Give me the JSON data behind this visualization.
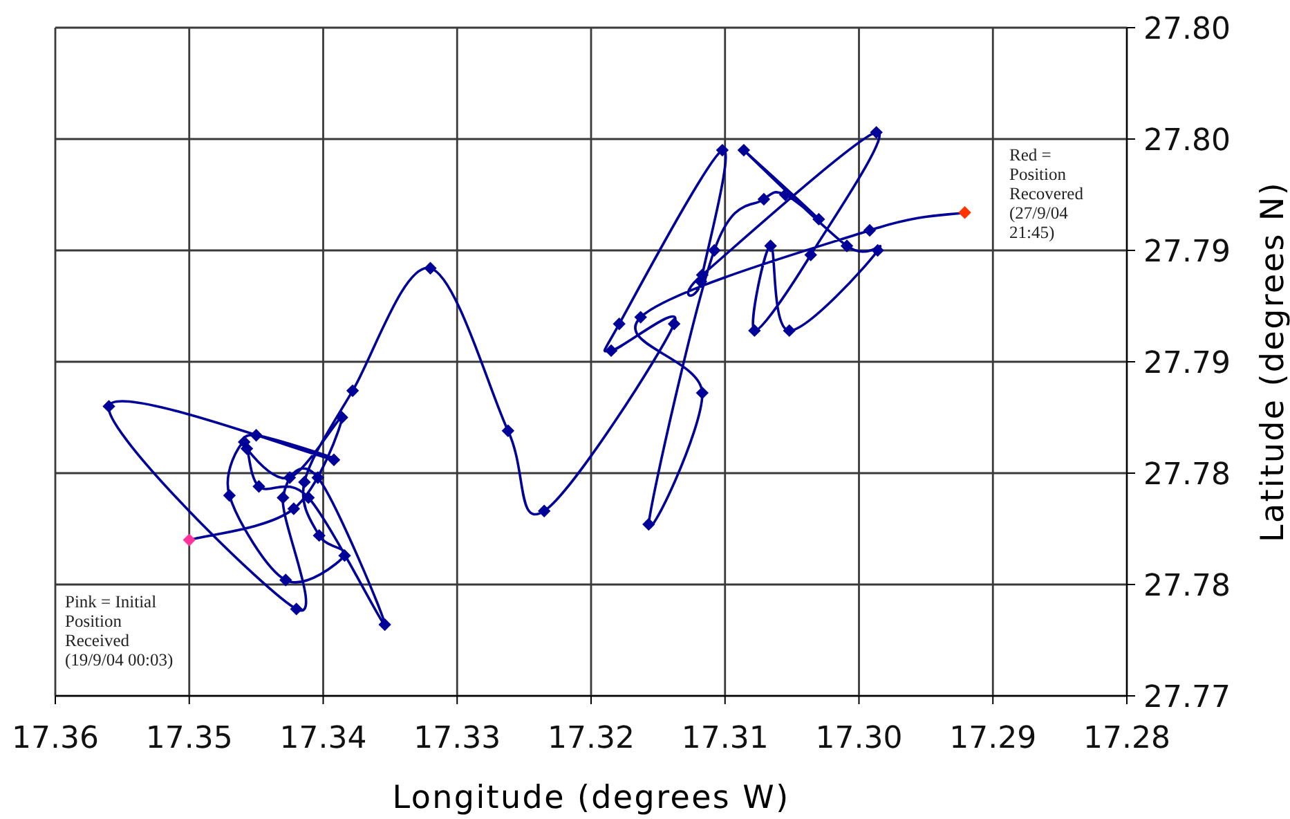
{
  "chart_data": {
    "type": "line",
    "xlabel": "Longitude (degrees W)",
    "ylabel": "Latitude (degrees N)",
    "annotations": [
      "Red = Position Recovered (27/9/04 21:45)",
      "Pink = Initial Position Received (19/9/04 00:03)"
    ],
    "xlim": [
      17.36,
      17.28
    ],
    "xticks": [
      17.36,
      17.35,
      17.34,
      17.33,
      17.32,
      17.31,
      {
        "value": 17.3,
        "label": "17.30"
      },
      17.29,
      17.28
    ],
    "ylim": [
      27.77,
      27.8
    ],
    "yticks": [
      27.77,
      {
        "value": 27.775,
        "label": "27.78"
      },
      27.78,
      {
        "value": 27.785,
        "label": "27.79"
      },
      27.79,
      {
        "value": 27.795,
        "label": "27.80"
      },
      {
        "value": 27.8,
        "label": "27.80"
      }
    ],
    "grid": true,
    "marker": "diamond",
    "color": "#000099",
    "x": [
      17.35,
      17.3422,
      17.3386,
      17.3425,
      17.3457,
      17.345,
      17.3392,
      17.356,
      17.342,
      17.343,
      17.3404,
      17.3354,
      17.3411,
      17.3448,
      17.3459,
      17.347,
      17.3428,
      17.3384,
      17.3403,
      17.3414,
      17.3378,
      17.332,
      17.3262,
      17.3235,
      17.3138,
      17.3185,
      17.3179,
      17.3102,
      17.3118,
      17.3117,
      17.2987,
      17.3036,
      17.3078,
      17.3066,
      17.3052,
      17.2986,
      17.3009,
      17.3086,
      17.303,
      17.3055,
      17.3071,
      17.3108,
      17.3157,
      17.3117,
      17.3163,
      17.2992,
      17.2921
    ],
    "values": [
      27.777,
      27.7784,
      27.7825,
      27.7798,
      27.7811,
      27.7817,
      27.7806,
      27.783,
      27.7739,
      27.7789,
      27.7798,
      27.7732,
      27.7789,
      27.7794,
      27.7814,
      27.779,
      27.7752,
      27.7763,
      27.7772,
      27.7796,
      27.7837,
      27.7892,
      27.7819,
      27.7783,
      27.7867,
      27.7855,
      27.7867,
      27.7945,
      27.7886,
      27.7889,
      27.7953,
      27.7898,
      27.7864,
      27.7902,
      27.7864,
      27.79,
      27.7902,
      27.7945,
      27.7914,
      27.7925,
      27.7923,
      27.79,
      27.7777,
      27.7836,
      27.787,
      27.7909,
      27.7917
    ],
    "colors": [
      "#ff3399",
      "#000099",
      "#000099",
      "#000099",
      "#000099",
      "#000099",
      "#000099",
      "#000099",
      "#000099",
      "#000099",
      "#000099",
      "#000099",
      "#000099",
      "#000099",
      "#000099",
      "#000099",
      "#000099",
      "#000099",
      "#000099",
      "#000099",
      "#000099",
      "#000099",
      "#000099",
      "#000099",
      "#000099",
      "#000099",
      "#000099",
      "#000099",
      "#000099",
      "#000099",
      "#000099",
      "#000099",
      "#000099",
      "#000099",
      "#000099",
      "#000099",
      "#000099",
      "#000099",
      "#000099",
      "#000099",
      "#000099",
      "#000099",
      "#000099",
      "#000099",
      "#000099",
      "#000099",
      "#ff3300"
    ]
  }
}
